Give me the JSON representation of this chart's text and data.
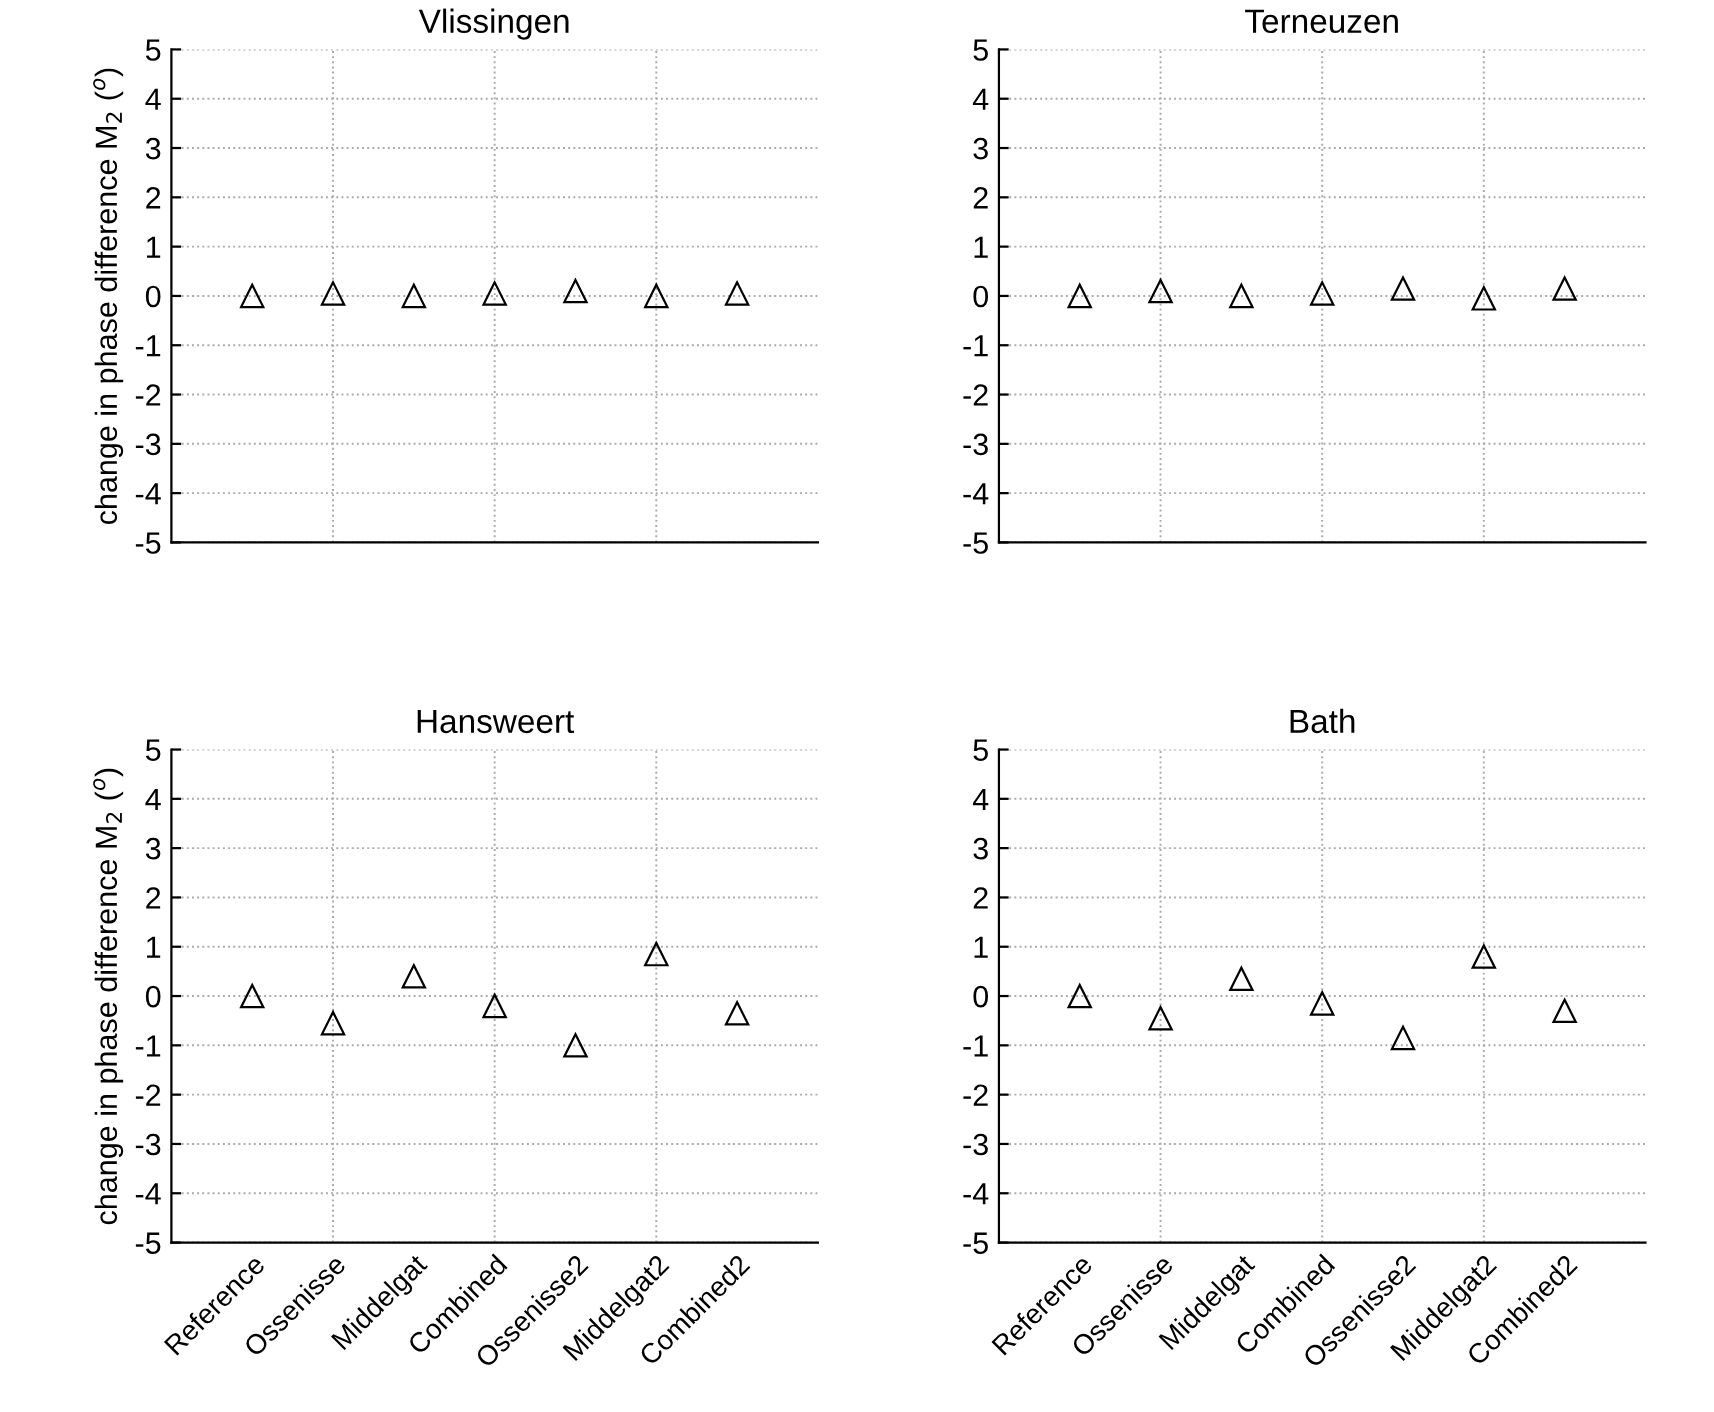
{
  "chart_data": [
    {
      "type": "scatter",
      "title": "Vlissingen",
      "ylabel": "change in phase difference M$_{2}$ ($^{o}$)",
      "categories": [
        null,
        null,
        null,
        null,
        null,
        null,
        null
      ],
      "values": [
        0,
        0.05,
        0,
        0.05,
        0.1,
        0,
        0.05
      ],
      "color": "#000000",
      "marker": "triangle",
      "ylim": [
        -5,
        5
      ],
      "yticks": [
        -5,
        -4,
        -3,
        -2,
        -1,
        0,
        1,
        2,
        3,
        4,
        5
      ],
      "grid": true,
      "tick_labels": "y"
    },
    {
      "type": "scatter",
      "title": "Terneuzen",
      "categories": [
        null,
        null,
        null,
        null,
        null,
        null,
        null
      ],
      "values": [
        0,
        0.1,
        0,
        0.05,
        0.15,
        -0.05,
        0.15
      ],
      "color": "#000000",
      "marker": "triangle",
      "ylim": [
        -5,
        5
      ],
      "yticks": [
        -5,
        -4,
        -3,
        -2,
        -1,
        0,
        1,
        2,
        3,
        4,
        5
      ],
      "grid": true,
      "tick_labels": "y"
    },
    {
      "type": "scatter",
      "title": "Hansweert",
      "ylabel": "change in phase difference M$_{2}$ ($^{o}$)",
      "categories": [
        "Reference",
        "Ossenisse",
        "Middelgat",
        "Combined",
        "Ossenisse2",
        "Middelgat2",
        "Combined2"
      ],
      "values": [
        0,
        -0.55,
        0.4,
        -0.2,
        -1.0,
        0.85,
        -0.35
      ],
      "color": "#000000",
      "marker": "triangle",
      "ylim": [
        -5,
        5
      ],
      "yticks": [
        -5,
        -4,
        -3,
        -2,
        -1,
        0,
        1,
        2,
        3,
        4,
        5
      ],
      "grid": true
    },
    {
      "type": "scatter",
      "title": "Bath",
      "categories": [
        "Reference",
        "Ossenisse",
        "Middelgat",
        "Combined",
        "Ossenisse2",
        "Middelgat2",
        "Combined2"
      ],
      "values": [
        0,
        -0.45,
        0.35,
        -0.15,
        -0.85,
        0.8,
        -0.3
      ],
      "color": "#000000",
      "marker": "triangle",
      "ylim": [
        -5,
        5
      ],
      "yticks": [
        -5,
        -4,
        -3,
        -2,
        -1,
        0,
        1,
        2,
        3,
        4,
        5
      ],
      "grid": true
    }
  ]
}
